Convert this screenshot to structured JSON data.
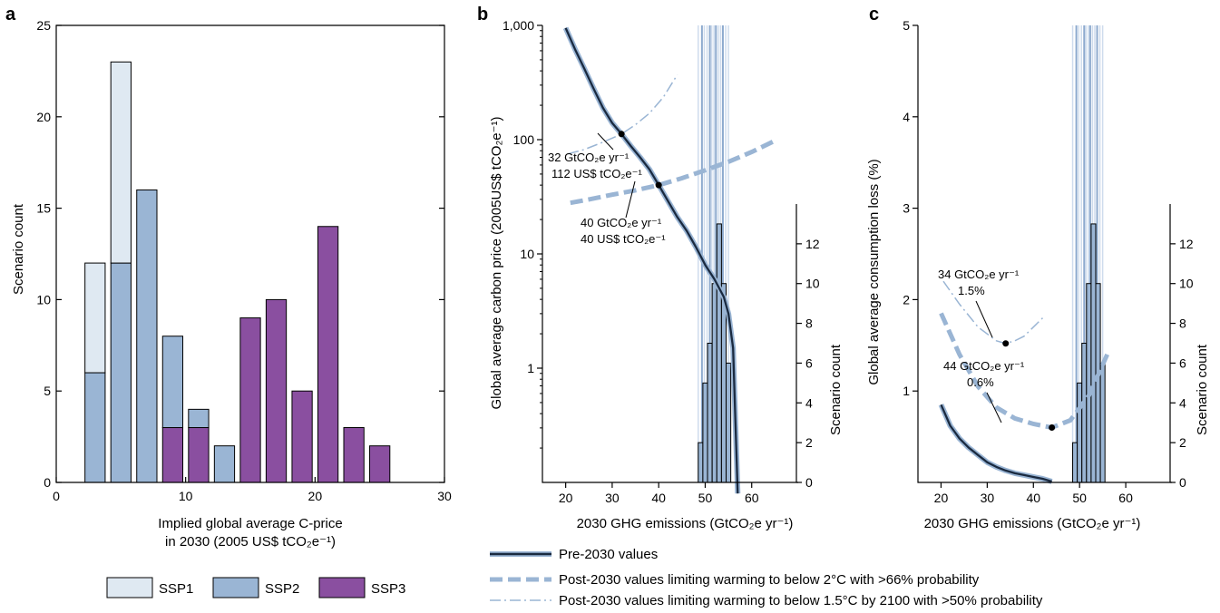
{
  "panels": {
    "a": {
      "letter": "a"
    },
    "b": {
      "letter": "b"
    },
    "c": {
      "letter": "c"
    }
  },
  "legend_a": {
    "ssp1": "SSP1",
    "ssp2": "SSP2",
    "ssp3": "SSP3"
  },
  "legend_bottom": {
    "pre": "Pre-2030 values",
    "post2": "Post-2030 values limiting warming to below 2°C with >66% probability",
    "post15": "Post-2030 values limiting warming to below 1.5°C by 2100 with >50% probability"
  },
  "annotations": {
    "b1_line1": "32 GtCO₂e yr⁻¹",
    "b1_line2": "112 US$ tCO₂e⁻¹",
    "b2_line1": "40 GtCO₂e yr⁻¹",
    "b2_line2": "40 US$ tCO₂e⁻¹",
    "c1_line1": "34 GtCO₂e yr⁻¹",
    "c1_line2": "1.5%",
    "c2_line1": "44 GtCO₂e yr⁻¹",
    "c2_line2": "0.6%"
  },
  "colors": {
    "ssp1": "#dfe9f2",
    "ssp2": "#9ab5d4",
    "ssp3": "#8a4fa0",
    "line_dark": "#1a2a40",
    "line_light": "#9ab5d4",
    "band": "#c7d7ea"
  },
  "chart_data": [
    {
      "type": "bar",
      "panel": "a",
      "xlabel": "Implied global average C-price in 2030 (2005 US$ tCO₂e⁻¹)",
      "xlabel_line1": "Implied global average C-price",
      "xlabel_line2": "in 2030 (2005 US$ tCO₂e⁻¹)",
      "ylabel": "Scenario count",
      "xlim": [
        0,
        30
      ],
      "ylim": [
        0,
        25
      ],
      "xticks": [
        0,
        10,
        20,
        30
      ],
      "yticks": [
        0,
        5,
        10,
        15,
        20,
        25
      ],
      "stacked": true,
      "bins": [
        {
          "center": 3,
          "SSP1": 6,
          "SSP2": 6,
          "SSP3": 0
        },
        {
          "center": 5,
          "SSP1": 11,
          "SSP2": 12,
          "SSP3": 0
        },
        {
          "center": 7,
          "SSP1": 0,
          "SSP2": 16,
          "SSP3": 0
        },
        {
          "center": 9,
          "SSP1": 0,
          "SSP2": 5,
          "SSP3": 3
        },
        {
          "center": 11,
          "SSP1": 0,
          "SSP2": 1,
          "SSP3": 3
        },
        {
          "center": 13,
          "SSP1": 0,
          "SSP2": 2,
          "SSP3": 0
        },
        {
          "center": 15,
          "SSP1": 0,
          "SSP2": 0,
          "SSP3": 9
        },
        {
          "center": 17,
          "SSP1": 0,
          "SSP2": 0,
          "SSP3": 10
        },
        {
          "center": 19,
          "SSP1": 0,
          "SSP2": 0,
          "SSP3": 5
        },
        {
          "center": 21,
          "SSP1": 0,
          "SSP2": 0,
          "SSP3": 14
        },
        {
          "center": 23,
          "SSP1": 0,
          "SSP2": 0,
          "SSP3": 3
        },
        {
          "center": 25,
          "SSP1": 0,
          "SSP2": 0,
          "SSP3": 2
        }
      ]
    },
    {
      "type": "line",
      "panel": "b",
      "xlabel": "2030 GHG emissions (GtCO₂e yr⁻¹)",
      "ylabel": "Global average carbon price (2005US$ tCO₂e⁻¹)",
      "ylabel2": "Scenario count",
      "xlim": [
        15,
        70
      ],
      "ylim": [
        0.1,
        1000
      ],
      "yscale": "log",
      "xticks": [
        20,
        30,
        40,
        50,
        60
      ],
      "yticks": [
        1,
        10,
        100,
        1000
      ],
      "ytick_labels": [
        "1",
        "10",
        "100",
        "1,000"
      ],
      "y2lim": [
        0,
        14
      ],
      "y2ticks": [
        0,
        2,
        4,
        6,
        8,
        10,
        12
      ],
      "series": [
        {
          "name": "Pre-2030 values",
          "x": [
            20,
            22,
            24,
            26,
            28,
            30,
            32,
            34,
            36,
            38,
            40,
            42,
            44,
            46,
            48,
            50,
            52,
            54,
            55,
            56,
            57
          ],
          "y": [
            950,
            620,
            420,
            280,
            190,
            140,
            112,
            88,
            70,
            55,
            40,
            29,
            21,
            16,
            11.5,
            8,
            6,
            4.2,
            3,
            1.5,
            0.08
          ]
        },
        {
          "name": "Post-2030 values limiting warming to below 2°C with >66% probability",
          "x": [
            21,
            25,
            30,
            35,
            40,
            45,
            50,
            55,
            60,
            65
          ],
          "y": [
            28,
            30,
            33,
            36,
            40,
            46,
            54,
            64,
            78,
            98
          ]
        },
        {
          "name": "Post-2030 values limiting warming to below 1.5°C by 2100 with >50% probability",
          "x": [
            20.5,
            24,
            28,
            32,
            35,
            38,
            41,
            44
          ],
          "y": [
            75,
            82,
            95,
            112,
            135,
            170,
            235,
            370
          ]
        }
      ],
      "histogram": {
        "x_centers": [
          49,
          50,
          51,
          52,
          53,
          54,
          55
        ],
        "counts": [
          2,
          5,
          7,
          10,
          13,
          10,
          6
        ]
      },
      "points": [
        {
          "x": 32,
          "y": 112
        },
        {
          "x": 40,
          "y": 40
        }
      ]
    },
    {
      "type": "line",
      "panel": "c",
      "xlabel": "2030 GHG emissions (GtCO₂e yr⁻¹)",
      "ylabel": "Global average consumption loss (%)",
      "ylabel2": "Scenario count",
      "xlim": [
        15,
        70
      ],
      "ylim": [
        0,
        5
      ],
      "xticks": [
        20,
        30,
        40,
        50,
        60
      ],
      "yticks": [
        1,
        2,
        3,
        4,
        5
      ],
      "y2lim": [
        0,
        14
      ],
      "y2ticks": [
        0,
        2,
        4,
        6,
        8,
        10,
        12
      ],
      "series": [
        {
          "name": "Pre-2030 values",
          "x": [
            20,
            22,
            24,
            26,
            28,
            30,
            32,
            34,
            36,
            38,
            40,
            42,
            44
          ],
          "y": [
            0.85,
            0.62,
            0.48,
            0.38,
            0.3,
            0.22,
            0.17,
            0.13,
            0.1,
            0.08,
            0.06,
            0.04,
            0.01
          ]
        },
        {
          "name": "Post-2030 values limiting warming to below 2°C with >66% probability",
          "x": [
            20,
            24,
            28,
            32,
            36,
            40,
            44,
            48,
            52,
            56
          ],
          "y": [
            1.85,
            1.4,
            1.05,
            0.82,
            0.7,
            0.64,
            0.6,
            0.68,
            0.95,
            1.4
          ]
        },
        {
          "name": "Post-2030 values limiting warming to below 1.5°C by 2100 with >50% probability",
          "x": [
            20.5,
            24,
            28,
            32,
            34,
            36,
            38,
            42
          ],
          "y": [
            2.2,
            1.95,
            1.7,
            1.55,
            1.52,
            1.55,
            1.6,
            1.8
          ]
        }
      ],
      "histogram": {
        "x_centers": [
          49,
          50,
          51,
          52,
          53,
          54,
          55
        ],
        "counts": [
          2,
          5,
          7,
          10,
          13,
          10,
          6
        ]
      },
      "points": [
        {
          "x": 34,
          "y": 1.52
        },
        {
          "x": 44,
          "y": 0.6
        }
      ]
    }
  ]
}
